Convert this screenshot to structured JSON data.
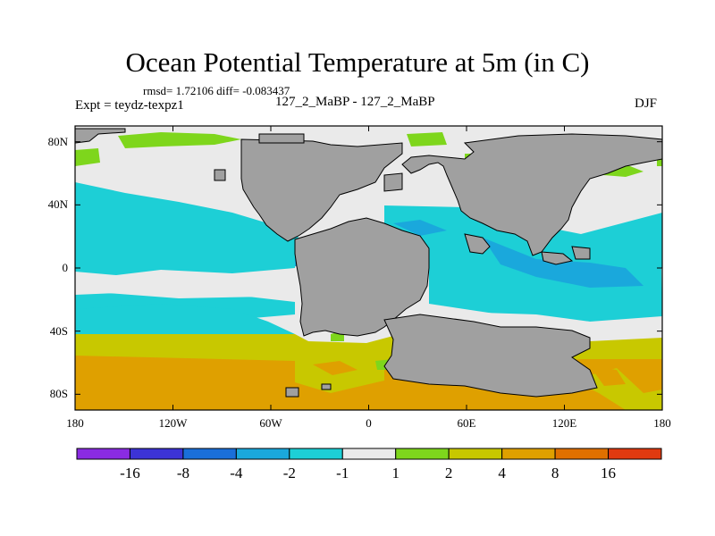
{
  "title": "Ocean Potential Temperature at 5m (in C)",
  "stats": "rmsd= 1.72106  diff= -0.083437",
  "expt_label": "Expt = teydz-texpz1",
  "center_label": "127_2_MaBP - 127_2_MaBP",
  "season": "DJF",
  "y_axis": {
    "range": [
      -90,
      90
    ],
    "ticks": [
      {
        "value": 80,
        "label": "80N"
      },
      {
        "value": 40,
        "label": "40N"
      },
      {
        "value": 0,
        "label": "0"
      },
      {
        "value": -40,
        "label": "40S"
      },
      {
        "value": -80,
        "label": "80S"
      }
    ]
  },
  "x_axis": {
    "range": [
      -180,
      180
    ],
    "ticks": [
      {
        "value": -180,
        "label": "180"
      },
      {
        "value": -120,
        "label": "120W"
      },
      {
        "value": -60,
        "label": "60W"
      },
      {
        "value": 0,
        "label": "0"
      },
      {
        "value": 60,
        "label": "60E"
      },
      {
        "value": 120,
        "label": "120E"
      },
      {
        "value": 180,
        "label": "180"
      }
    ]
  },
  "colorbar": {
    "colors": [
      "#8a2be2",
      "#3c33d6",
      "#1a6fd9",
      "#1aa8dc",
      "#1dcfd6",
      "#eaeaea",
      "#7ed61c",
      "#c8c800",
      "#dfa000",
      "#e07000",
      "#e03a10"
    ],
    "labels": [
      "-16",
      "-8",
      "-4",
      "-2",
      "-1",
      "1",
      "2",
      "4",
      "8",
      "16"
    ]
  },
  "land_color": "#a0a0a0"
}
